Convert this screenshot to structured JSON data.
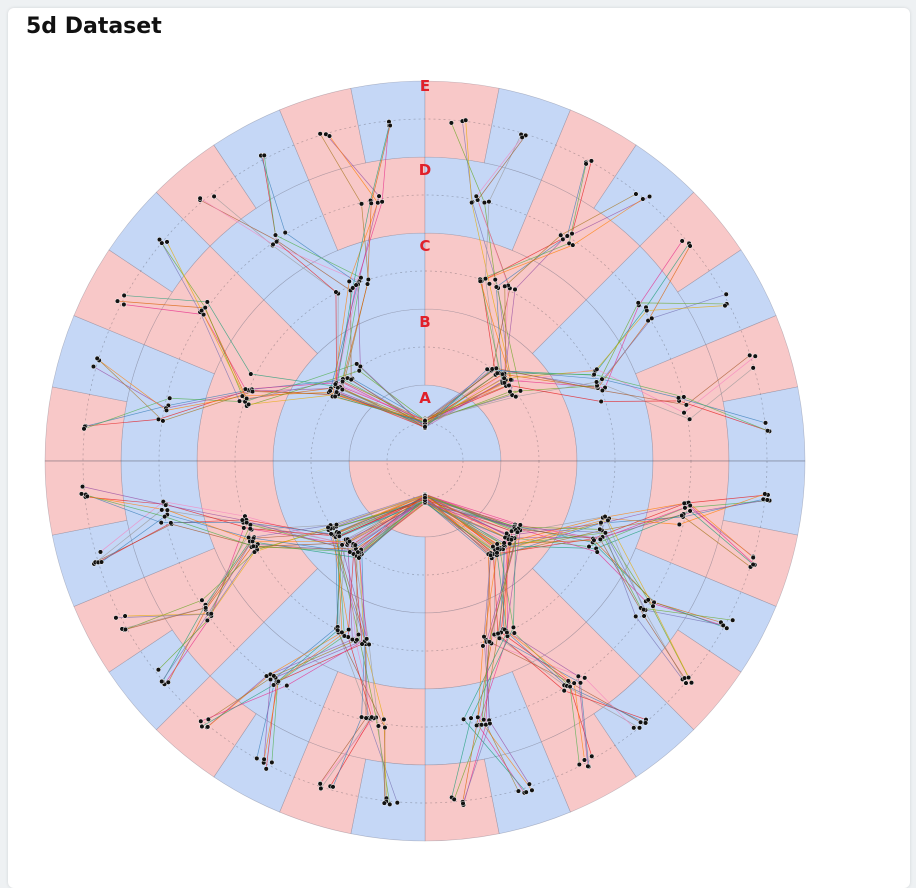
{
  "page": {
    "title": "5d Dataset"
  },
  "chart_data": {
    "type": "radial-hierarchical-parallel-coordinates",
    "title": "5d Dataset",
    "dimensions": [
      "A",
      "B",
      "C",
      "D",
      "E"
    ],
    "colors": {
      "segment_a": "#c5d7f6",
      "segment_b": "#f8c8c8",
      "axis_label": "#e0202a",
      "point": "#111111"
    },
    "grid": true,
    "hemispheres": [
      {
        "name": "",
        "sectors": {
          "A": 1,
          "B": 2,
          "C": 4,
          "D": 8,
          "E": 16
        }
      },
      {
        "name": "",
        "sectors": {
          "A": 1,
          "B": 2,
          "C": 4,
          "D": 8,
          "E": 16
        }
      }
    ]
  }
}
